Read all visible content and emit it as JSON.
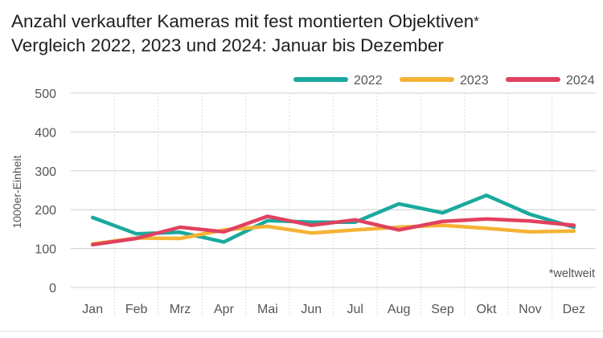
{
  "chart_data": {
    "type": "line",
    "title": "Anzahl verkaufter Kameras mit fest montierten Objektiven",
    "title_marker": "*",
    "subtitle": "Vergleich 2022, 2023 und 2024: Januar bis Dezember",
    "ylabel": "1000er-Einheit",
    "xlabel": "",
    "ylim": [
      0,
      500
    ],
    "yticks": [
      0,
      100,
      200,
      300,
      400,
      500
    ],
    "categories": [
      "Jan",
      "Feb",
      "Mrz",
      "Apr",
      "Mai",
      "Jun",
      "Jul",
      "Aug",
      "Sep",
      "Okt",
      "Nov",
      "Dez"
    ],
    "series": [
      {
        "name": "2022",
        "color": "#1aa99e",
        "values": [
          180,
          138,
          142,
          117,
          172,
          168,
          168,
          215,
          192,
          237,
          188,
          155
        ]
      },
      {
        "name": "2023",
        "color": "#f5b335",
        "values": [
          112,
          127,
          126,
          148,
          157,
          140,
          148,
          155,
          160,
          152,
          143,
          145
        ]
      },
      {
        "name": "2024",
        "color": "#e0415f",
        "values": [
          110,
          126,
          155,
          143,
          183,
          160,
          174,
          148,
          170,
          176,
          171,
          160
        ]
      }
    ],
    "legend_position": "top-right",
    "grid": "horizontal solid, vertical dotted",
    "annotation": "*weltweit"
  }
}
